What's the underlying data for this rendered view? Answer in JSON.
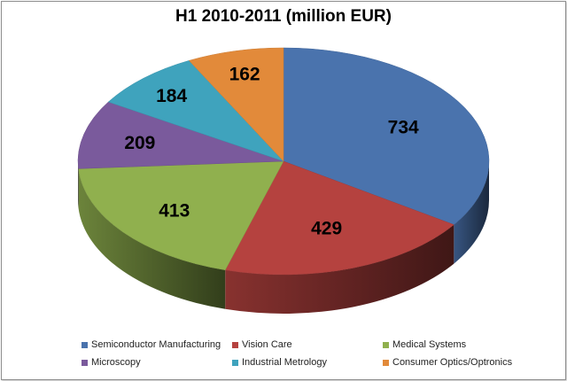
{
  "chart_data": {
    "type": "pie",
    "title": "H1 2010-2011 (million EUR)",
    "slices": [
      {
        "label": "Semiconductor Manufacturing",
        "value": 734,
        "color": "#4a73ad"
      },
      {
        "label": "Vision Care",
        "value": 429,
        "color": "#b5423f"
      },
      {
        "label": "Medical Systems",
        "value": 413,
        "color": "#90b04e"
      },
      {
        "label": "Microscopy",
        "value": 209,
        "color": "#7a5a9c"
      },
      {
        "label": "Industrial Metrology",
        "value": 184,
        "color": "#3fa3bd"
      },
      {
        "label": "Consumer Optics/Optronics",
        "value": 162,
        "color": "#e28a3a"
      }
    ],
    "legend_position": "bottom",
    "data_labels": true,
    "style": "3d"
  }
}
